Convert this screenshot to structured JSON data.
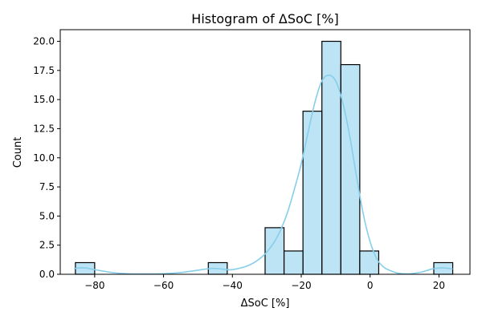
{
  "chart_data": {
    "type": "bar",
    "title": "Histogram of ΔSoC [%]",
    "xlabel": "ΔSoC [%]",
    "ylabel": "Count",
    "xlim": [
      -90,
      29
    ],
    "ylim": [
      0,
      21
    ],
    "xticks": [
      -80,
      -60,
      -40,
      -20,
      0,
      20
    ],
    "xtick_labels": [
      "−80",
      "−60",
      "−40",
      "−20",
      "0",
      "20"
    ],
    "yticks": [
      0,
      2.5,
      5,
      7.5,
      10,
      12.5,
      15,
      17.5,
      20
    ],
    "ytick_labels": [
      "0.0",
      "2.5",
      "5.0",
      "7.5",
      "10.0",
      "12.5",
      "15.0",
      "17.5",
      "20.0"
    ],
    "grid": false,
    "bar_color": "#87CEEB",
    "bar_edge_color": "#000000",
    "kde_color": "#87CEEB",
    "bins": [
      {
        "x0": -85.6,
        "x1": -80.0,
        "count": 1
      },
      {
        "x0": -47.0,
        "x1": -41.5,
        "count": 1
      },
      {
        "x0": -30.5,
        "x1": -25.0,
        "count": 4
      },
      {
        "x0": -25.0,
        "x1": -19.5,
        "count": 2
      },
      {
        "x0": -19.5,
        "x1": -14.0,
        "count": 14
      },
      {
        "x0": -14.0,
        "x1": -8.5,
        "count": 20
      },
      {
        "x0": -8.5,
        "x1": -3.0,
        "count": 18
      },
      {
        "x0": -3.0,
        "x1": 2.5,
        "count": 2
      },
      {
        "x0": 18.5,
        "x1": 24.0,
        "count": 1
      }
    ],
    "kde": {
      "x": [
        -86,
        -83,
        -80,
        -75,
        -70,
        -65,
        -60,
        -55,
        -50,
        -46,
        -43,
        -40,
        -35,
        -31,
        -28,
        -26,
        -24,
        -22,
        -20,
        -18,
        -16,
        -14,
        -12,
        -10,
        -8,
        -6,
        -4,
        -2,
        0,
        2,
        4,
        6,
        8,
        10,
        12,
        15,
        18,
        21,
        24
      ],
      "y": [
        0.5,
        0.55,
        0.4,
        0.15,
        0.04,
        0.03,
        0.05,
        0.15,
        0.35,
        0.5,
        0.45,
        0.4,
        0.8,
        1.6,
        2.7,
        3.8,
        5.3,
        7.3,
        9.5,
        12.2,
        14.8,
        16.6,
        17.1,
        16.6,
        14.8,
        12.0,
        8.5,
        5.2,
        2.8,
        1.3,
        0.6,
        0.3,
        0.1,
        0.04,
        0.05,
        0.2,
        0.45,
        0.55,
        0.45
      ]
    }
  }
}
